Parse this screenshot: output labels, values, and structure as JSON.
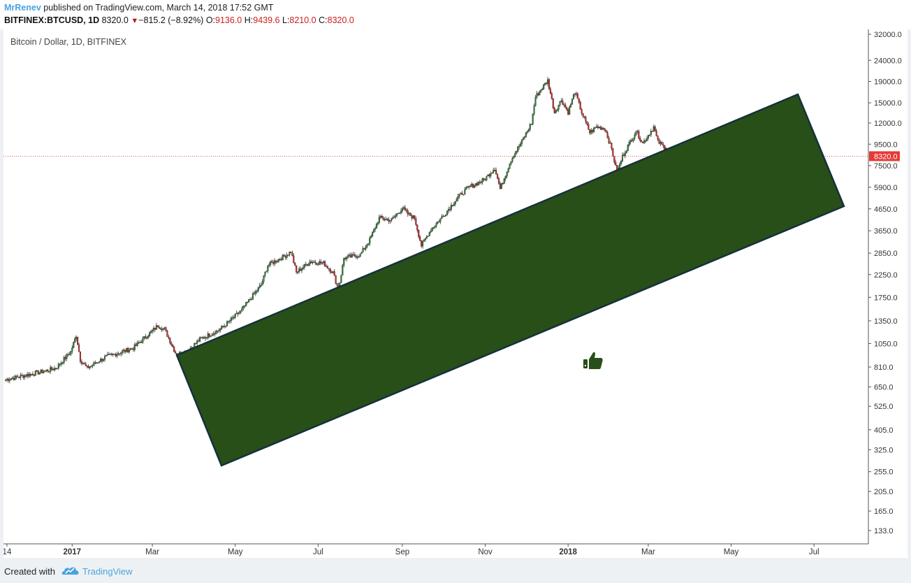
{
  "header": {
    "author": "MrRenev",
    "published_text": "published on TradingView.com, March 14, 2018 17:52 GMT",
    "symbol": "BITFINEX:BTCUSD, 1D",
    "last": "8320.0",
    "change_arrow": "▼",
    "change": "−815.2 (−8.92%)",
    "o_label": "O:",
    "open": "9136.0",
    "h_label": "H:",
    "high": "9439.6",
    "l_label": "L:",
    "low": "8210.0",
    "c_label": "C:",
    "close": "8320.0"
  },
  "chart_label": "Bitcoin / Dollar, 1D, BITFINEX",
  "footer": {
    "created_with": "Created with",
    "brand": "TradingView"
  },
  "colors": {
    "up": "#2e7d32",
    "down": "#c62828",
    "zone": "#284f17",
    "zone_border": "#15303d",
    "price_line": "#e53935",
    "price_badge": "#e53935"
  },
  "icons": {
    "thumb": "thumbs-up-icon"
  },
  "chart_data": {
    "type": "candlestick",
    "title": "Bitcoin / Dollar, 1D, BITFINEX",
    "scale": "log",
    "ylim": [
      120,
      34000
    ],
    "y_ticks": [
      32000.0,
      24000.0,
      19000.0,
      15000.0,
      12000.0,
      9500.0,
      7500.0,
      5900.0,
      4650.0,
      3650.0,
      2850.0,
      2250.0,
      1750.0,
      1350.0,
      1050.0,
      810.0,
      650.0,
      525.0,
      405.0,
      325.0,
      255.0,
      205.0,
      165.0,
      133.0
    ],
    "y_tick_labels": [
      "32000.0",
      "24000.0",
      "19000.0",
      "15000.0",
      "12000.0",
      "9500.0",
      "7500.0",
      "5900.0",
      "4650.0",
      "3650.0",
      "2850.0",
      "2250.0",
      "1750.0",
      "1350.0",
      "1050.0",
      "810.0",
      "650.0",
      "525.0",
      "405.0",
      "325.0",
      "255.0",
      "205.0",
      "165.0",
      "133.0"
    ],
    "x_ticks": [
      {
        "label": "14",
        "date": "2016-11-14",
        "bold": false
      },
      {
        "label": "2017",
        "date": "2017-01-01",
        "bold": true
      },
      {
        "label": "Mar",
        "date": "2017-03-01",
        "bold": false
      },
      {
        "label": "May",
        "date": "2017-05-01",
        "bold": false
      },
      {
        "label": "Jul",
        "date": "2017-07-01",
        "bold": false
      },
      {
        "label": "Sep",
        "date": "2017-09-01",
        "bold": false
      },
      {
        "label": "Nov",
        "date": "2017-11-01",
        "bold": false
      },
      {
        "label": "2018",
        "date": "2018-01-01",
        "bold": true
      },
      {
        "label": "Mar",
        "date": "2018-03-01",
        "bold": false
      },
      {
        "label": "May",
        "date": "2018-05-01",
        "bold": false
      },
      {
        "label": "Jul",
        "date": "2018-07-01",
        "bold": false
      }
    ],
    "x_range": [
      "2016-11-13",
      "2018-08-10"
    ],
    "last_price": 8320.0,
    "last_price_label": "8320.0",
    "anchors": [
      [
        "2016-11-13",
        705
      ],
      [
        "2016-12-10",
        770
      ],
      [
        "2016-12-20",
        800
      ],
      [
        "2016-12-31",
        960
      ],
      [
        "2017-01-04",
        1150
      ],
      [
        "2017-01-07",
        880
      ],
      [
        "2017-01-12",
        800
      ],
      [
        "2017-01-25",
        900
      ],
      [
        "2017-02-15",
        1000
      ],
      [
        "2017-02-28",
        1190
      ],
      [
        "2017-03-05",
        1280
      ],
      [
        "2017-03-10",
        1230
      ],
      [
        "2017-03-18",
        950
      ],
      [
        "2017-03-24",
        930
      ],
      [
        "2017-04-05",
        1100
      ],
      [
        "2017-04-20",
        1230
      ],
      [
        "2017-05-05",
        1500
      ],
      [
        "2017-05-20",
        2000
      ],
      [
        "2017-05-25",
        2500
      ],
      [
        "2017-06-06",
        2750
      ],
      [
        "2017-06-11",
        2900
      ],
      [
        "2017-06-15",
        2300
      ],
      [
        "2017-06-25",
        2600
      ],
      [
        "2017-07-05",
        2550
      ],
      [
        "2017-07-12",
        2300
      ],
      [
        "2017-07-16",
        1900
      ],
      [
        "2017-07-20",
        2700
      ],
      [
        "2017-08-01",
        2800
      ],
      [
        "2017-08-08",
        3300
      ],
      [
        "2017-08-15",
        4200
      ],
      [
        "2017-08-24",
        4100
      ],
      [
        "2017-09-01",
        4700
      ],
      [
        "2017-09-05",
        4400
      ],
      [
        "2017-09-10",
        4200
      ],
      [
        "2017-09-15",
        3100
      ],
      [
        "2017-09-22",
        3700
      ],
      [
        "2017-10-01",
        4300
      ],
      [
        "2017-10-12",
        5300
      ],
      [
        "2017-10-20",
        5900
      ],
      [
        "2017-10-31",
        6400
      ],
      [
        "2017-11-08",
        7300
      ],
      [
        "2017-11-12",
        5800
      ],
      [
        "2017-11-20",
        8000
      ],
      [
        "2017-11-28",
        9800
      ],
      [
        "2017-12-05",
        12000
      ],
      [
        "2017-12-08",
        16000
      ],
      [
        "2017-12-17",
        19200
      ],
      [
        "2017-12-22",
        13500
      ],
      [
        "2017-12-27",
        15500
      ],
      [
        "2018-01-01",
        13500
      ],
      [
        "2018-01-06",
        17000
      ],
      [
        "2018-01-11",
        13500
      ],
      [
        "2018-01-17",
        10800
      ],
      [
        "2018-01-22",
        11500
      ],
      [
        "2018-01-28",
        11300
      ],
      [
        "2018-02-02",
        9000
      ],
      [
        "2018-02-06",
        6900
      ],
      [
        "2018-02-10",
        8300
      ],
      [
        "2018-02-20",
        11000
      ],
      [
        "2018-02-25",
        9600
      ],
      [
        "2018-03-05",
        11500
      ],
      [
        "2018-03-08",
        9800
      ],
      [
        "2018-03-13",
        9135
      ],
      [
        "2018-03-14",
        8320
      ]
    ],
    "overlays": [
      {
        "type": "support-zone",
        "label": "",
        "color": "#284f17"
      }
    ]
  }
}
